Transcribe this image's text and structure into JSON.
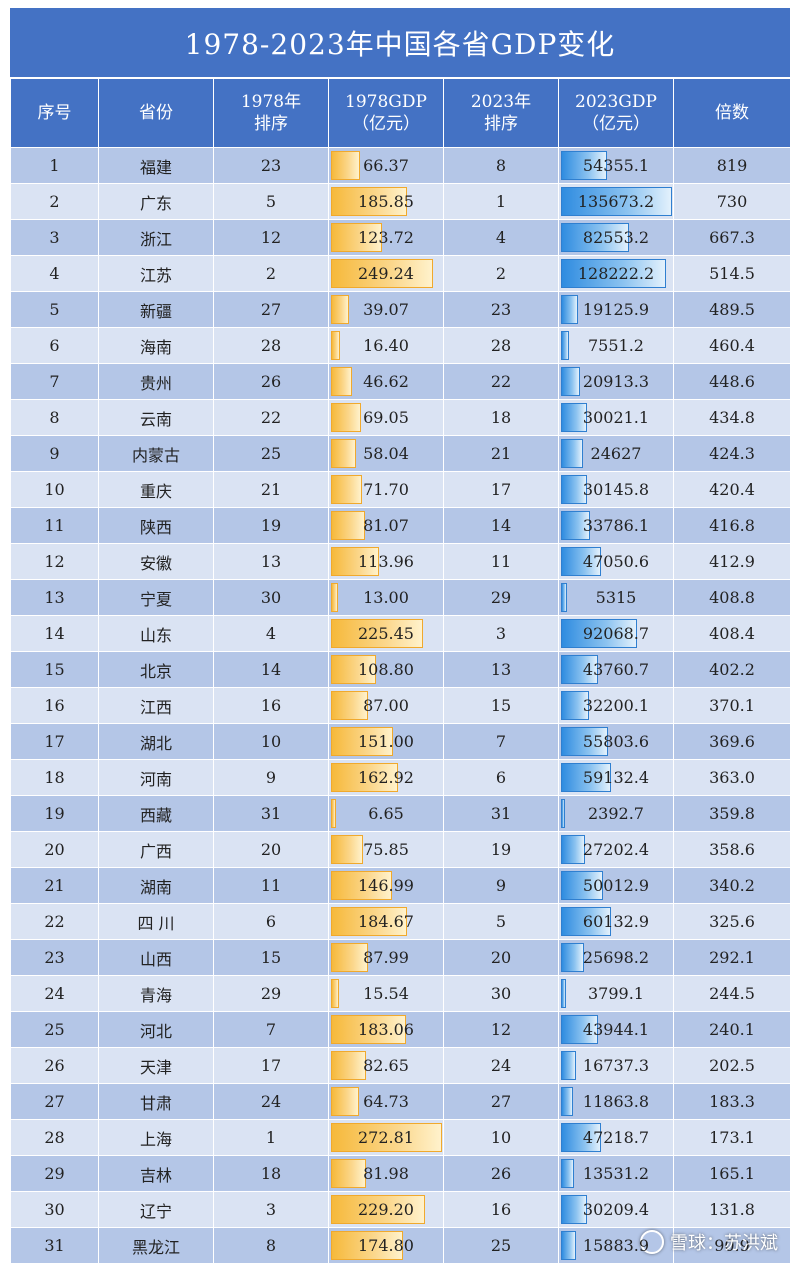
{
  "title": "1978-2023年中国各省GDP变化",
  "headers": {
    "idx": "序号",
    "province": "省份",
    "rank1978_line1": "1978年",
    "rank1978_line2": "排序",
    "gdp1978_line1": "1978GDP",
    "gdp1978_line2": "（亿元）",
    "rank2023_line1": "2023年",
    "rank2023_line2": "排序",
    "gdp2023_line1": "2023GDP",
    "gdp2023_line2": "（亿元）",
    "multiple": "倍数"
  },
  "rows": [
    {
      "idx": "1",
      "province": "福建",
      "rank1978": "23",
      "gdp1978": "66.37",
      "rank2023": "8",
      "gdp2023": "54355.1",
      "multiple": "819"
    },
    {
      "idx": "2",
      "province": "广东",
      "rank1978": "5",
      "gdp1978": "185.85",
      "rank2023": "1",
      "gdp2023": "135673.2",
      "multiple": "730"
    },
    {
      "idx": "3",
      "province": "浙江",
      "rank1978": "12",
      "gdp1978": "123.72",
      "rank2023": "4",
      "gdp2023": "82553.2",
      "multiple": "667.3"
    },
    {
      "idx": "4",
      "province": "江苏",
      "rank1978": "2",
      "gdp1978": "249.24",
      "rank2023": "2",
      "gdp2023": "128222.2",
      "multiple": "514.5"
    },
    {
      "idx": "5",
      "province": "新疆",
      "rank1978": "27",
      "gdp1978": "39.07",
      "rank2023": "23",
      "gdp2023": "19125.9",
      "multiple": "489.5"
    },
    {
      "idx": "6",
      "province": "海南",
      "rank1978": "28",
      "gdp1978": "16.40",
      "rank2023": "28",
      "gdp2023": "7551.2",
      "multiple": "460.4"
    },
    {
      "idx": "7",
      "province": "贵州",
      "rank1978": "26",
      "gdp1978": "46.62",
      "rank2023": "22",
      "gdp2023": "20913.3",
      "multiple": "448.6"
    },
    {
      "idx": "8",
      "province": "云南",
      "rank1978": "22",
      "gdp1978": "69.05",
      "rank2023": "18",
      "gdp2023": "30021.1",
      "multiple": "434.8"
    },
    {
      "idx": "9",
      "province": "内蒙古",
      "rank1978": "25",
      "gdp1978": "58.04",
      "rank2023": "21",
      "gdp2023": "24627",
      "multiple": "424.3"
    },
    {
      "idx": "10",
      "province": "重庆",
      "rank1978": "21",
      "gdp1978": "71.70",
      "rank2023": "17",
      "gdp2023": "30145.8",
      "multiple": "420.4"
    },
    {
      "idx": "11",
      "province": "陕西",
      "rank1978": "19",
      "gdp1978": "81.07",
      "rank2023": "14",
      "gdp2023": "33786.1",
      "multiple": "416.8"
    },
    {
      "idx": "12",
      "province": "安徽",
      "rank1978": "13",
      "gdp1978": "113.96",
      "rank2023": "11",
      "gdp2023": "47050.6",
      "multiple": "412.9"
    },
    {
      "idx": "13",
      "province": "宁夏",
      "rank1978": "30",
      "gdp1978": "13.00",
      "rank2023": "29",
      "gdp2023": "5315",
      "multiple": "408.8"
    },
    {
      "idx": "14",
      "province": "山东",
      "rank1978": "4",
      "gdp1978": "225.45",
      "rank2023": "3",
      "gdp2023": "92068.7",
      "multiple": "408.4"
    },
    {
      "idx": "15",
      "province": "北京",
      "rank1978": "14",
      "gdp1978": "108.80",
      "rank2023": "13",
      "gdp2023": "43760.7",
      "multiple": "402.2"
    },
    {
      "idx": "16",
      "province": "江西",
      "rank1978": "16",
      "gdp1978": "87.00",
      "rank2023": "15",
      "gdp2023": "32200.1",
      "multiple": "370.1"
    },
    {
      "idx": "17",
      "province": "湖北",
      "rank1978": "10",
      "gdp1978": "151.00",
      "rank2023": "7",
      "gdp2023": "55803.6",
      "multiple": "369.6"
    },
    {
      "idx": "18",
      "province": "河南",
      "rank1978": "9",
      "gdp1978": "162.92",
      "rank2023": "6",
      "gdp2023": "59132.4",
      "multiple": "363.0"
    },
    {
      "idx": "19",
      "province": "西藏",
      "rank1978": "31",
      "gdp1978": "6.65",
      "rank2023": "31",
      "gdp2023": "2392.7",
      "multiple": "359.8"
    },
    {
      "idx": "20",
      "province": "广西",
      "rank1978": "20",
      "gdp1978": "75.85",
      "rank2023": "19",
      "gdp2023": "27202.4",
      "multiple": "358.6"
    },
    {
      "idx": "21",
      "province": "湖南",
      "rank1978": "11",
      "gdp1978": "146.99",
      "rank2023": "9",
      "gdp2023": "50012.9",
      "multiple": "340.2"
    },
    {
      "idx": "22",
      "province": "四 川",
      "rank1978": "6",
      "gdp1978": "184.67",
      "rank2023": "5",
      "gdp2023": "60132.9",
      "multiple": "325.6"
    },
    {
      "idx": "23",
      "province": "山西",
      "rank1978": "15",
      "gdp1978": "87.99",
      "rank2023": "20",
      "gdp2023": "25698.2",
      "multiple": "292.1"
    },
    {
      "idx": "24",
      "province": "青海",
      "rank1978": "29",
      "gdp1978": "15.54",
      "rank2023": "30",
      "gdp2023": "3799.1",
      "multiple": "244.5"
    },
    {
      "idx": "25",
      "province": "河北",
      "rank1978": "7",
      "gdp1978": "183.06",
      "rank2023": "12",
      "gdp2023": "43944.1",
      "multiple": "240.1"
    },
    {
      "idx": "26",
      "province": "天津",
      "rank1978": "17",
      "gdp1978": "82.65",
      "rank2023": "24",
      "gdp2023": "16737.3",
      "multiple": "202.5"
    },
    {
      "idx": "27",
      "province": "甘肃",
      "rank1978": "24",
      "gdp1978": "64.73",
      "rank2023": "27",
      "gdp2023": "11863.8",
      "multiple": "183.3"
    },
    {
      "idx": "28",
      "province": "上海",
      "rank1978": "1",
      "gdp1978": "272.81",
      "rank2023": "10",
      "gdp2023": "47218.7",
      "multiple": "173.1"
    },
    {
      "idx": "29",
      "province": "吉林",
      "rank1978": "18",
      "gdp1978": "81.98",
      "rank2023": "26",
      "gdp2023": "13531.2",
      "multiple": "165.1"
    },
    {
      "idx": "30",
      "province": "辽宁",
      "rank1978": "3",
      "gdp1978": "229.20",
      "rank2023": "16",
      "gdp2023": "30209.4",
      "multiple": "131.8"
    },
    {
      "idx": "31",
      "province": "黑龙江",
      "rank1978": "8",
      "gdp1978": "174.80",
      "rank2023": "25",
      "gdp2023": "15883.9",
      "multiple": "90.9"
    }
  ],
  "watermark": "雪球：苏洪斌",
  "colors": {
    "header_bg": "#4472c4",
    "row_odd": "#b4c6e7",
    "row_even": "#dae3f3",
    "bar_1978": "#f6b93b",
    "bar_2023": "#2f8ce0"
  }
}
